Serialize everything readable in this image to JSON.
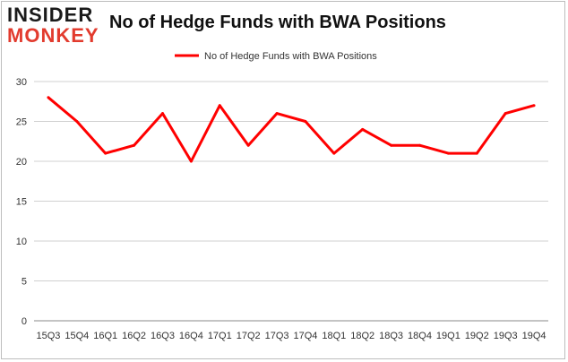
{
  "logo": {
    "top": "INSIDER",
    "bottom": "MONKEY"
  },
  "chart_data": {
    "type": "line",
    "title": "No of Hedge Funds with BWA Positions",
    "xlabel": "",
    "ylabel": "",
    "ylim": [
      0,
      30
    ],
    "yticks": [
      0,
      5,
      10,
      15,
      20,
      25,
      30
    ],
    "categories": [
      "15Q3",
      "15Q4",
      "16Q1",
      "16Q2",
      "16Q3",
      "16Q4",
      "17Q1",
      "17Q2",
      "17Q3",
      "17Q4",
      "18Q1",
      "18Q2",
      "18Q3",
      "18Q4",
      "19Q1",
      "19Q2",
      "19Q3",
      "19Q4"
    ],
    "series": [
      {
        "name": "No of Hedge Funds with BWA Positions",
        "color": "#ff0000",
        "values": [
          28,
          25,
          21,
          22,
          26,
          20,
          27,
          22,
          26,
          25,
          21,
          24,
          22,
          22,
          21,
          21,
          26,
          27
        ]
      }
    ],
    "grid": true,
    "legend": "top-center"
  }
}
